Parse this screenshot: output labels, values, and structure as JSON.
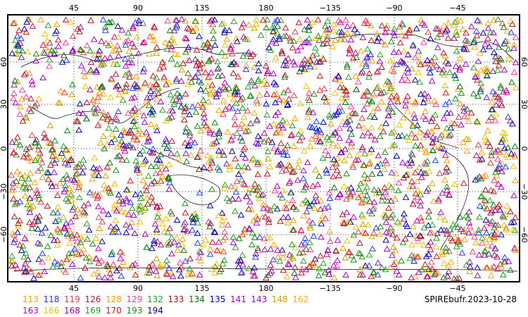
{
  "map": {
    "top_lon_labels": [
      "45",
      "90",
      "135",
      "180",
      "−135",
      "−90",
      "−45"
    ],
    "bottom_lon_labels": [
      "45",
      "90",
      "135",
      "180",
      "−135",
      "−90",
      "−45"
    ],
    "left_lat_labels": [
      "60",
      "30",
      "0",
      "−30",
      "−60"
    ],
    "right_lat_labels": [
      "60",
      "30",
      "0",
      "−30",
      "−60"
    ],
    "gridlines": "dotted",
    "marker": "open-triangle"
  },
  "legend": {
    "entries": [
      {
        "id": "113",
        "color": "#f5a000"
      },
      {
        "id": "118",
        "color": "#1e3cff"
      },
      {
        "id": "119",
        "color": "#e03c3c"
      },
      {
        "id": "126",
        "color": "#c8102e"
      },
      {
        "id": "128",
        "color": "#f5a000"
      },
      {
        "id": "129",
        "color": "#f03c96"
      },
      {
        "id": "132",
        "color": "#20a020"
      },
      {
        "id": "133",
        "color": "#a01818"
      },
      {
        "id": "134",
        "color": "#107010"
      },
      {
        "id": "135",
        "color": "#0000c0"
      },
      {
        "id": "141",
        "color": "#a000c8"
      },
      {
        "id": "143",
        "color": "#8c14c8"
      },
      {
        "id": "148",
        "color": "#c8a000"
      },
      {
        "id": "162",
        "color": "#f0b400"
      },
      {
        "id": "163",
        "color": "#b400b4"
      },
      {
        "id": "166",
        "color": "#f0c000"
      },
      {
        "id": "168",
        "color": "#a000a0"
      },
      {
        "id": "169",
        "color": "#28a028"
      },
      {
        "id": "170",
        "color": "#c81414"
      },
      {
        "id": "193",
        "color": "#148c14"
      },
      {
        "id": "194",
        "color": "#0000a0"
      }
    ]
  },
  "title": "SPIREbufr.2023-10-28"
}
